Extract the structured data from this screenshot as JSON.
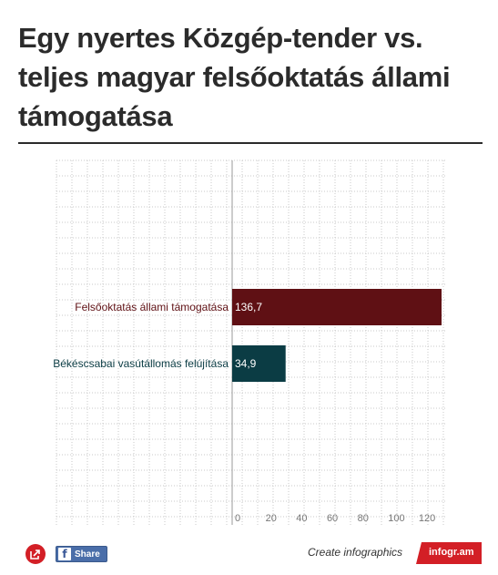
{
  "title": "Egy nyertes Közgép-tender vs. teljes magyar felsőoktatás állami támogatása",
  "chart_data": {
    "type": "bar",
    "orientation": "horizontal",
    "categories": [
      "Felsőoktatás állami támogatása",
      "Békéscsabai vasútállomás felújítása"
    ],
    "values": [
      136.7,
      34.9
    ],
    "value_labels": [
      "136,7",
      "34,9"
    ],
    "colors": [
      "#5f1014",
      "#0b3c44"
    ],
    "xlim": [
      0,
      136.7
    ],
    "xticks": [
      0,
      20,
      40,
      60,
      80,
      100,
      120
    ],
    "grid": true
  },
  "footer": {
    "share_label": "Share",
    "fb_glyph": "f",
    "create_label": "Create infographics",
    "brand": "infogr.am"
  },
  "icons": {
    "share": "share-icon",
    "facebook": "facebook-icon",
    "brand_badge": "infogram-badge"
  }
}
